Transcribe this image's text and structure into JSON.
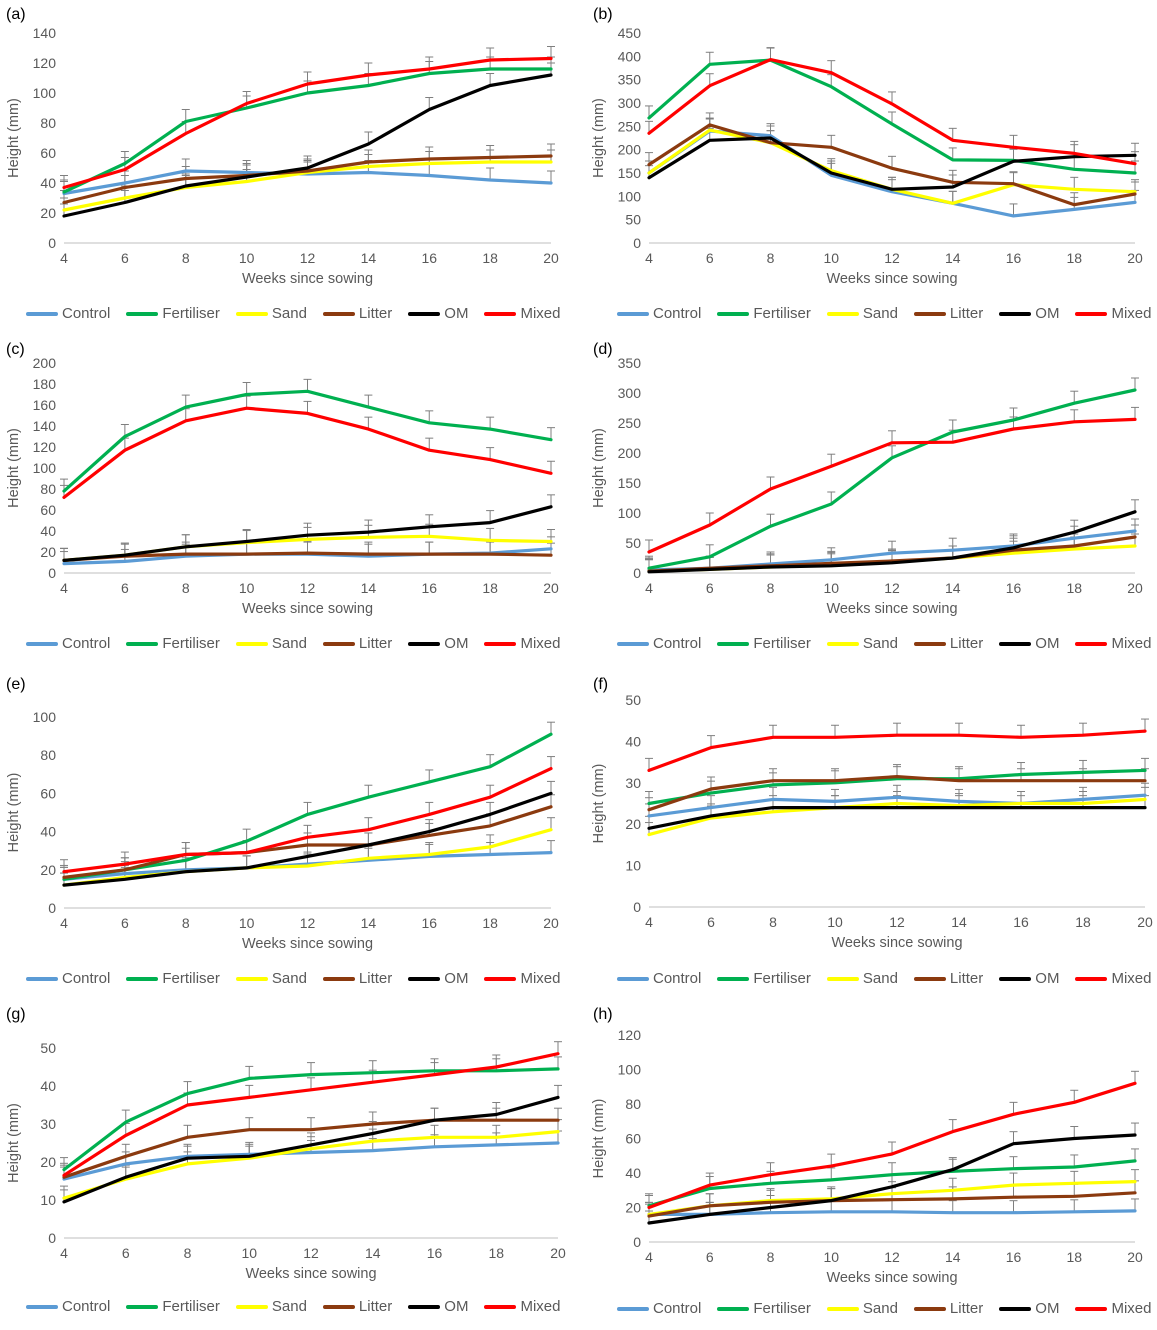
{
  "colors": {
    "Control": "#5b9bd5",
    "Fertiliser": "#00b050",
    "Sand": "#ffff00",
    "Litter": "#8b3a0f",
    "OM": "#000000",
    "Mixed": "#ff0000"
  },
  "chart_data": [
    {
      "panel": "(a)",
      "type": "line",
      "xlabel": "Weeks since sowing",
      "ylabel": "Height (mm)",
      "ylim": [
        0,
        140
      ],
      "yticks": [
        0,
        20,
        40,
        60,
        80,
        100,
        120,
        140
      ],
      "x": [
        4,
        6,
        8,
        10,
        12,
        14,
        16,
        18,
        20
      ],
      "series": [
        {
          "name": "Control",
          "values": [
            33,
            40,
            48,
            47,
            46,
            47,
            45,
            42,
            40
          ]
        },
        {
          "name": "Fertiliser",
          "values": [
            34,
            53,
            81,
            90,
            100,
            105,
            113,
            116,
            116
          ]
        },
        {
          "name": "Sand",
          "values": [
            22,
            30,
            37,
            41,
            47,
            51,
            53,
            54,
            54
          ]
        },
        {
          "name": "Litter",
          "values": [
            27,
            37,
            43,
            45,
            48,
            54,
            56,
            57,
            58
          ]
        },
        {
          "name": "OM",
          "values": [
            18,
            27,
            38,
            44,
            50,
            66,
            89,
            105,
            112
          ]
        },
        {
          "name": "Mixed",
          "values": [
            37,
            49,
            73,
            93,
            106,
            112,
            116,
            122,
            123
          ]
        }
      ]
    },
    {
      "panel": "(b)",
      "type": "line",
      "xlabel": "Weeks since sowing",
      "ylabel": "Height (mm)",
      "ylim": [
        0,
        450
      ],
      "yticks": [
        0,
        50,
        100,
        150,
        200,
        250,
        300,
        350,
        400,
        450
      ],
      "x": [
        4,
        6,
        8,
        10,
        12,
        14,
        16,
        18,
        20
      ],
      "series": [
        {
          "name": "Control",
          "values": [
            150,
            240,
            230,
            145,
            110,
            85,
            58,
            72,
            87
          ]
        },
        {
          "name": "Fertiliser",
          "values": [
            268,
            383,
            392,
            335,
            255,
            178,
            177,
            158,
            150
          ]
        },
        {
          "name": "Sand",
          "values": [
            150,
            242,
            215,
            155,
            115,
            85,
            125,
            115,
            110
          ]
        },
        {
          "name": "Litter",
          "values": [
            168,
            253,
            215,
            205,
            160,
            130,
            127,
            82,
            105
          ]
        },
        {
          "name": "OM",
          "values": [
            140,
            220,
            225,
            150,
            115,
            120,
            175,
            185,
            188
          ]
        },
        {
          "name": "Mixed",
          "values": [
            235,
            337,
            393,
            365,
            298,
            220,
            205,
            192,
            170
          ]
        }
      ]
    },
    {
      "panel": "(c)",
      "type": "line",
      "xlabel": "Weeks since sowing",
      "ylabel": "Height (mm)",
      "ylim": [
        0,
        200
      ],
      "yticks": [
        0,
        20,
        40,
        60,
        80,
        100,
        120,
        140,
        160,
        180,
        200
      ],
      "x": [
        4,
        6,
        8,
        10,
        12,
        14,
        16,
        18,
        20
      ],
      "series": [
        {
          "name": "Control",
          "values": [
            9,
            11,
            16,
            18,
            18,
            16,
            18,
            19,
            23
          ]
        },
        {
          "name": "Fertiliser",
          "values": [
            78,
            130,
            158,
            170,
            173,
            158,
            143,
            137,
            127
          ]
        },
        {
          "name": "Sand",
          "values": [
            12,
            17,
            25,
            29,
            32,
            34,
            35,
            31,
            30
          ]
        },
        {
          "name": "Litter",
          "values": [
            12,
            16,
            18,
            18,
            19,
            18,
            18,
            18,
            17
          ]
        },
        {
          "name": "OM",
          "values": [
            12,
            17,
            25,
            30,
            36,
            39,
            44,
            48,
            63
          ]
        },
        {
          "name": "Mixed",
          "values": [
            72,
            117,
            145,
            157,
            152,
            137,
            117,
            108,
            95
          ]
        }
      ]
    },
    {
      "panel": "(d)",
      "type": "line",
      "xlabel": "Weeks since sowing",
      "ylabel": "Height (mm)",
      "ylim": [
        0,
        350
      ],
      "yticks": [
        0,
        50,
        100,
        150,
        200,
        250,
        300,
        350
      ],
      "x": [
        4,
        6,
        8,
        10,
        12,
        14,
        16,
        18,
        20
      ],
      "series": [
        {
          "name": "Control",
          "values": [
            5,
            8,
            15,
            22,
            33,
            38,
            45,
            58,
            70
          ]
        },
        {
          "name": "Fertiliser",
          "values": [
            8,
            27,
            78,
            115,
            192,
            235,
            255,
            283,
            305
          ]
        },
        {
          "name": "Sand",
          "values": [
            3,
            6,
            10,
            14,
            18,
            25,
            33,
            40,
            45
          ]
        },
        {
          "name": "Litter",
          "values": [
            3,
            8,
            12,
            16,
            20,
            25,
            38,
            45,
            60
          ]
        },
        {
          "name": "OM",
          "values": [
            2,
            6,
            10,
            12,
            17,
            25,
            42,
            68,
            102
          ]
        },
        {
          "name": "Mixed",
          "values": [
            35,
            80,
            140,
            178,
            217,
            218,
            240,
            252,
            256
          ]
        }
      ]
    },
    {
      "panel": "(e)",
      "type": "line",
      "xlabel": "Weeks since sowing",
      "ylabel": "Height (mm)",
      "ylim": [
        0,
        100
      ],
      "yticks": [
        0,
        20,
        40,
        60,
        80,
        100
      ],
      "x": [
        4,
        6,
        8,
        10,
        12,
        14,
        16,
        18,
        20
      ],
      "series": [
        {
          "name": "Control",
          "values": [
            15,
            18,
            20,
            21,
            23,
            25,
            27,
            28,
            29
          ]
        },
        {
          "name": "Fertiliser",
          "values": [
            15,
            20,
            25,
            35,
            49,
            58,
            66,
            74,
            91
          ]
        },
        {
          "name": "Sand",
          "values": [
            12,
            16,
            19,
            21,
            22,
            26,
            28,
            32,
            41
          ]
        },
        {
          "name": "Litter",
          "values": [
            16,
            20,
            28,
            29,
            33,
            33,
            38,
            43,
            53
          ]
        },
        {
          "name": "OM",
          "values": [
            12,
            15,
            19,
            21,
            27,
            33,
            40,
            49,
            60
          ]
        },
        {
          "name": "Mixed",
          "values": [
            19,
            23,
            28,
            29,
            37,
            41,
            49,
            58,
            73
          ]
        }
      ]
    },
    {
      "panel": "(f)",
      "type": "line",
      "xlabel": "Weeks since sowing",
      "ylabel": "Height (mm)",
      "ylim": [
        0,
        50
      ],
      "yticks": [
        0,
        10,
        20,
        30,
        40,
        50
      ],
      "x": [
        4,
        6,
        8,
        10,
        12,
        14,
        16,
        18,
        20
      ],
      "series": [
        {
          "name": "Control",
          "values": [
            22,
            24,
            26,
            25.5,
            26.5,
            25.5,
            25,
            26,
            27
          ]
        },
        {
          "name": "Fertiliser",
          "values": [
            25,
            27.5,
            29.5,
            30,
            31,
            31,
            32,
            32.5,
            33
          ]
        },
        {
          "name": "Sand",
          "values": [
            17.5,
            21.5,
            23,
            24,
            25,
            24.5,
            25,
            25,
            26
          ]
        },
        {
          "name": "Litter",
          "values": [
            23.5,
            28.5,
            30.5,
            30.5,
            31.5,
            30.5,
            30.5,
            30.5,
            30.5
          ]
        },
        {
          "name": "OM",
          "values": [
            19,
            22,
            24,
            24,
            24,
            24,
            24,
            24,
            24
          ]
        },
        {
          "name": "Mixed",
          "values": [
            33,
            38.5,
            41,
            41,
            41.5,
            41.5,
            41,
            41.5,
            42.5
          ]
        }
      ]
    },
    {
      "panel": "(g)",
      "type": "line",
      "xlabel": "Weeks since sowing",
      "ylabel": "Height (mm)",
      "ylim": [
        0,
        50
      ],
      "yticks": [
        0,
        10,
        20,
        30,
        40,
        50
      ],
      "x": [
        4,
        6,
        8,
        10,
        12,
        14,
        16,
        18,
        20
      ],
      "series": [
        {
          "name": "Control",
          "values": [
            15.5,
            19.5,
            21.5,
            22,
            22.5,
            23,
            24,
            24.5,
            25
          ]
        },
        {
          "name": "Fertiliser",
          "values": [
            18,
            30.5,
            38,
            42,
            43,
            43.5,
            44,
            44,
            44.5
          ]
        },
        {
          "name": "Sand",
          "values": [
            10.5,
            15.5,
            19.5,
            21,
            23.5,
            25.5,
            26.5,
            26.5,
            28
          ]
        },
        {
          "name": "Litter",
          "values": [
            16,
            21.5,
            26.5,
            28.5,
            28.5,
            30,
            31,
            31,
            31
          ]
        },
        {
          "name": "OM",
          "values": [
            9.5,
            16,
            21,
            21.5,
            24.5,
            27.5,
            31,
            32.5,
            37
          ]
        },
        {
          "name": "Mixed",
          "values": [
            16.5,
            27,
            35,
            37,
            39,
            41,
            43,
            45,
            48.5
          ]
        }
      ]
    },
    {
      "panel": "(h)",
      "type": "line",
      "xlabel": "Weeks since sowing",
      "ylabel": "Height (mm)",
      "ylim": [
        0,
        120
      ],
      "yticks": [
        0,
        20,
        40,
        60,
        80,
        100,
        120
      ],
      "x": [
        4,
        6,
        8,
        10,
        12,
        14,
        16,
        18,
        20
      ],
      "series": [
        {
          "name": "Control",
          "values": [
            16,
            16,
            17,
            17.5,
            17.5,
            17,
            17,
            17.5,
            18
          ]
        },
        {
          "name": "Fertiliser",
          "values": [
            21,
            31,
            34,
            36,
            39,
            41,
            42.5,
            43.5,
            47
          ]
        },
        {
          "name": "Sand",
          "values": [
            16,
            21,
            24,
            25,
            28,
            30,
            33,
            34,
            35
          ]
        },
        {
          "name": "Litter",
          "values": [
            15,
            21,
            23,
            24,
            24.5,
            25,
            26,
            26.5,
            28.5
          ]
        },
        {
          "name": "OM",
          "values": [
            11,
            16,
            20,
            24,
            32,
            42,
            57,
            60,
            62
          ]
        },
        {
          "name": "Mixed",
          "values": [
            20,
            33,
            39,
            44,
            51,
            64,
            74,
            81,
            92
          ]
        }
      ]
    }
  ]
}
